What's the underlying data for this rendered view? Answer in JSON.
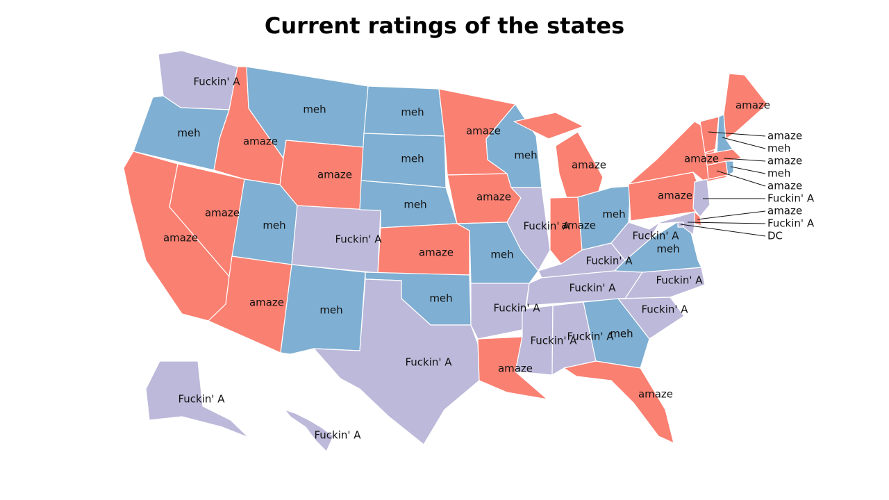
{
  "title": "Current ratings of the states",
  "colors": {
    "amaze": "#fa8072",
    "meh": "#7fafd2",
    "Fuckin' A": "#bdb9da"
  },
  "states": [
    {
      "id": "WA",
      "rating": "Fuckin' A",
      "label": "Fuckin' A"
    },
    {
      "id": "OR",
      "rating": "meh",
      "label": "meh"
    },
    {
      "id": "CA",
      "rating": "amaze",
      "label": "amaze"
    },
    {
      "id": "NV",
      "rating": "amaze",
      "label": "amaze"
    },
    {
      "id": "ID",
      "rating": "amaze",
      "label": "amaze"
    },
    {
      "id": "MT",
      "rating": "meh",
      "label": "meh"
    },
    {
      "id": "WY",
      "rating": "amaze",
      "label": "amaze"
    },
    {
      "id": "UT",
      "rating": "meh",
      "label": "meh"
    },
    {
      "id": "AZ",
      "rating": "amaze",
      "label": "amaze"
    },
    {
      "id": "CO",
      "rating": "Fuckin' A",
      "label": "Fuckin' A"
    },
    {
      "id": "NM",
      "rating": "meh",
      "label": "meh"
    },
    {
      "id": "ND",
      "rating": "meh",
      "label": "meh"
    },
    {
      "id": "SD",
      "rating": "meh",
      "label": "meh"
    },
    {
      "id": "NE",
      "rating": "meh",
      "label": "meh"
    },
    {
      "id": "KS",
      "rating": "amaze",
      "label": "amaze"
    },
    {
      "id": "OK",
      "rating": "meh",
      "label": "meh"
    },
    {
      "id": "TX",
      "rating": "Fuckin' A",
      "label": "Fuckin' A"
    },
    {
      "id": "MN",
      "rating": "amaze",
      "label": "amaze"
    },
    {
      "id": "IA",
      "rating": "amaze",
      "label": "amaze"
    },
    {
      "id": "MO",
      "rating": "meh",
      "label": "meh"
    },
    {
      "id": "AR",
      "rating": "Fuckin' A",
      "label": "Fuckin' A"
    },
    {
      "id": "LA",
      "rating": "amaze",
      "label": "amaze"
    },
    {
      "id": "WI",
      "rating": "meh",
      "label": "meh"
    },
    {
      "id": "IL",
      "rating": "Fuckin' A",
      "label": "Fuckin' A"
    },
    {
      "id": "MI",
      "rating": "amaze",
      "label": "amaze"
    },
    {
      "id": "IN",
      "rating": "amaze",
      "label": "amaze"
    },
    {
      "id": "OH",
      "rating": "meh",
      "label": "meh"
    },
    {
      "id": "KY",
      "rating": "Fuckin' A",
      "label": "Fuckin' A"
    },
    {
      "id": "TN",
      "rating": "Fuckin' A",
      "label": "Fuckin' A"
    },
    {
      "id": "MS",
      "rating": "Fuckin' A",
      "label": "Fuckin' A"
    },
    {
      "id": "AL",
      "rating": "Fuckin' A",
      "label": "Fuckin' A"
    },
    {
      "id": "GA",
      "rating": "meh",
      "label": "meh"
    },
    {
      "id": "FL",
      "rating": "amaze",
      "label": "amaze"
    },
    {
      "id": "SC",
      "rating": "Fuckin' A",
      "label": "Fuckin' A"
    },
    {
      "id": "NC",
      "rating": "Fuckin' A",
      "label": "Fuckin' A"
    },
    {
      "id": "VA",
      "rating": "meh",
      "label": "meh"
    },
    {
      "id": "WV",
      "rating": "Fuckin' A",
      "label": "Fuckin' A"
    },
    {
      "id": "PA",
      "rating": "amaze",
      "label": "amaze"
    },
    {
      "id": "NY",
      "rating": "amaze",
      "label": "amaze"
    },
    {
      "id": "ME",
      "rating": "amaze",
      "label": "amaze"
    },
    {
      "id": "AK",
      "rating": "Fuckin' A",
      "label": "Fuckin' A"
    },
    {
      "id": "HI",
      "rating": "Fuckin' A",
      "label": "Fuckin' A"
    },
    {
      "id": "VT",
      "rating": "amaze",
      "label": "amaze"
    },
    {
      "id": "NH",
      "rating": "meh",
      "label": "meh"
    },
    {
      "id": "MA",
      "rating": "amaze",
      "label": "amaze"
    },
    {
      "id": "CT",
      "rating": "amaze",
      "label": "amaze"
    },
    {
      "id": "RI",
      "rating": "meh",
      "label": "meh"
    },
    {
      "id": "NJ",
      "rating": "Fuckin' A",
      "label": "Fuckin' A"
    },
    {
      "id": "DE",
      "rating": "amaze",
      "label": "amaze"
    },
    {
      "id": "MD",
      "rating": "Fuckin' A",
      "label": "Fuckin' A"
    },
    {
      "id": "DC",
      "rating": "Fuckin' A",
      "label": "DC"
    }
  ],
  "callouts": [
    {
      "state": "VT",
      "text": "amaze"
    },
    {
      "state": "NH",
      "text": "meh"
    },
    {
      "state": "MA",
      "text": "amaze"
    },
    {
      "state": "RI",
      "text": "meh"
    },
    {
      "state": "CT",
      "text": "amaze"
    },
    {
      "state": "NJ",
      "text": "Fuckin' A"
    },
    {
      "state": "DE",
      "text": "amaze"
    },
    {
      "state": "MD",
      "text": "Fuckin' A"
    },
    {
      "state": "DC",
      "text": "DC"
    }
  ]
}
